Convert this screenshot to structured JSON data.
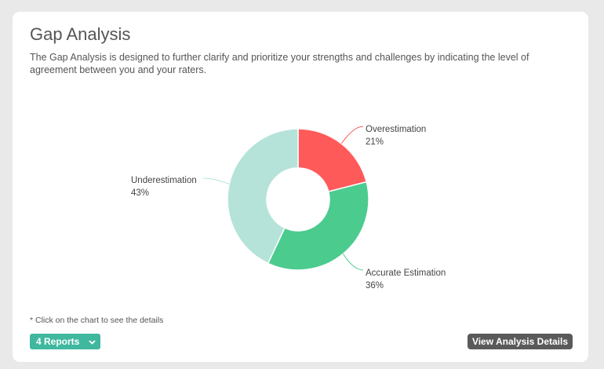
{
  "header": {
    "title": "Gap Analysis",
    "description": "The Gap Analysis is designed to further clarify and prioritize your strengths and challenges by indicating the level of agreement between you and your raters."
  },
  "chart_data": {
    "type": "pie",
    "categories": [
      "Overestimation",
      "Accurate Estimation",
      "Underestimation"
    ],
    "values": [
      21,
      36,
      43
    ],
    "value_labels": [
      "21%",
      "36%",
      "43%"
    ],
    "colors": [
      "#ff5a5a",
      "#4ccb8f",
      "#b5e3d9"
    ],
    "donut": true
  },
  "footer": {
    "note": "* Click on the chart to see the details",
    "reports_label": "4 Reports",
    "reports_icon": "chevron-down-icon",
    "details_label": "View Analysis Details"
  }
}
